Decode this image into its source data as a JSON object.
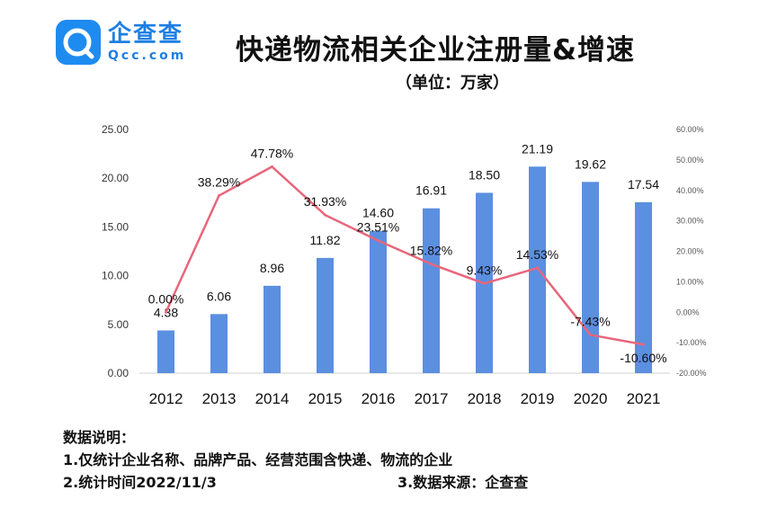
{
  "brand": {
    "name_cn": "企查查",
    "name_en": "Qcc.com"
  },
  "title": "快递物流相关企业注册量&增速",
  "subtitle": "（单位：万家）",
  "notes": {
    "heading": "数据说明：",
    "line1": "1.仅统计企业名称、品牌产品、经营范围含快递、物流的企业",
    "line2": "2.统计时间2022/11/3",
    "line3": "3.数据来源：企查查"
  },
  "chart_data": {
    "type": "bar+line",
    "categories": [
      "2012",
      "2013",
      "2014",
      "2015",
      "2016",
      "2017",
      "2018",
      "2019",
      "2020",
      "2021"
    ],
    "series": [
      {
        "type": "bar",
        "axis": "left",
        "color": "#5b8fe0",
        "values": [
          4.38,
          6.06,
          8.96,
          11.82,
          14.6,
          16.91,
          18.5,
          21.19,
          19.62,
          17.54
        ],
        "labels": [
          "4.38",
          "6.06",
          "8.96",
          "11.82",
          "14.60",
          "16.91",
          "18.50",
          "21.19",
          "19.62",
          "17.54"
        ]
      },
      {
        "type": "line",
        "axis": "right",
        "color": "#e8667c",
        "values": [
          0.0,
          38.29,
          47.78,
          31.93,
          23.51,
          15.82,
          9.43,
          14.53,
          -7.43,
          -10.6
        ],
        "labels": [
          "0.00%",
          "38.29%",
          "47.78%",
          "31.93%",
          "23.51%",
          "15.82%",
          "9.43%",
          "14.53%",
          "-7.43%",
          "-10.60%"
        ]
      }
    ],
    "y_left": {
      "min": 0,
      "max": 25,
      "step": 5,
      "tick_labels": [
        "0.00",
        "5.00",
        "10.00",
        "15.00",
        "20.00",
        "25.00"
      ]
    },
    "y_right": {
      "min": -20,
      "max": 60,
      "step": 10,
      "tick_labels": [
        "-20.00%",
        "-10.00%",
        "0.00%",
        "10.00%",
        "20.00%",
        "30.00%",
        "40.00%",
        "50.00%",
        "60.00%"
      ]
    },
    "grid": false,
    "legend": "none"
  }
}
